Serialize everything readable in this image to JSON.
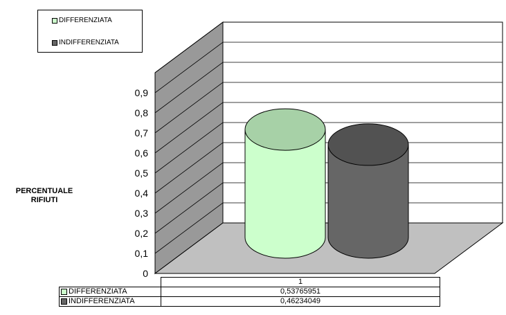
{
  "chart_data": {
    "type": "bar",
    "style": "3d-cylinder",
    "categories": [
      "1"
    ],
    "series": [
      {
        "name": "DIFFERENZIATA",
        "values": [
          0.53765951
        ],
        "value_label": "0,53765951",
        "color": "#ccffcc"
      },
      {
        "name": "INDIFFERENZIATA",
        "values": [
          0.46234049
        ],
        "value_label": "0,46234049",
        "color": "#666666"
      }
    ],
    "ylabel": "PERCENTUALE RIFIUTI",
    "ylabel_lines": [
      "PERCENTUALE",
      "RIFIUTI"
    ],
    "ylim": [
      0,
      1
    ],
    "yticks": [
      "0",
      "0,1",
      "0,2",
      "0,3",
      "0,4",
      "0,5",
      "0,6",
      "0,7",
      "0,8",
      "0,9"
    ],
    "legend": {
      "position": "top-left",
      "entries": [
        "DIFFERENZIATA",
        "INDIFFERENZIATA"
      ]
    },
    "grid": true,
    "data_table": true
  }
}
